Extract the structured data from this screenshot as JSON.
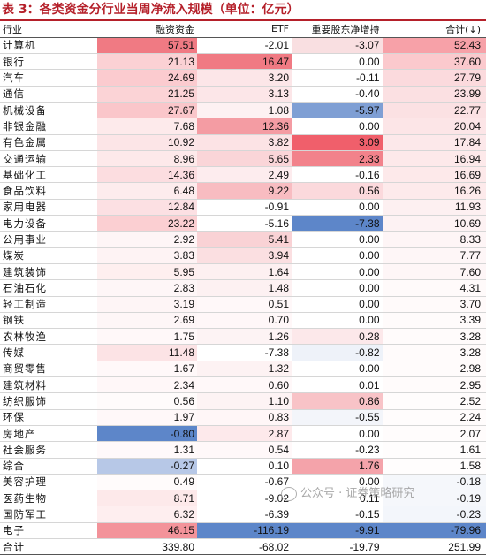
{
  "title": "表 3：各类资金分行业当周净流入规模（单位：亿元）",
  "headers": [
    "行业",
    "融资资金",
    "ETF",
    "重要股东净增持",
    "合计(↓)"
  ],
  "rows": [
    {
      "industry": "计算机",
      "margin": "57.51",
      "etf": "-2.01",
      "holder": "-3.07",
      "total": "52.43",
      "c": [
        "#f07a83",
        "#ffffff",
        "#f9dfe1",
        "#f7a1a8"
      ]
    },
    {
      "industry": "银行",
      "margin": "21.13",
      "etf": "16.47",
      "holder": "0.00",
      "total": "37.60",
      "c": [
        "#fbd1d4",
        "#f07a83",
        "#ffffff",
        "#fbc9cd"
      ]
    },
    {
      "industry": "汽车",
      "margin": "24.69",
      "etf": "3.20",
      "holder": "-0.11",
      "total": "27.79",
      "c": [
        "#fbcbcf",
        "#fce6e8",
        "#ffffff",
        "#fbdadd"
      ]
    },
    {
      "industry": "通信",
      "margin": "21.25",
      "etf": "3.13",
      "holder": "-0.40",
      "total": "23.99",
      "c": [
        "#fbd3d6",
        "#fce6e8",
        "#ffffff",
        "#fbe0e2"
      ]
    },
    {
      "industry": "机械设备",
      "margin": "27.67",
      "etf": "1.08",
      "holder": "-5.97",
      "total": "22.77",
      "c": [
        "#fac6ca",
        "#fdf1f2",
        "#7f9fd4",
        "#fbe1e3"
      ]
    },
    {
      "industry": "非银金融",
      "margin": "7.68",
      "etf": "12.36",
      "holder": "0.00",
      "total": "20.04",
      "c": [
        "#fdeaeb",
        "#f49ca3",
        "#ffffff",
        "#fce5e7"
      ]
    },
    {
      "industry": "有色金属",
      "margin": "10.92",
      "etf": "3.82",
      "holder": "3.09",
      "total": "17.84",
      "c": [
        "#fce5e7",
        "#fce3e5",
        "#f05f6b",
        "#fce8ea"
      ]
    },
    {
      "industry": "交通运输",
      "margin": "8.96",
      "etf": "5.65",
      "holder": "2.33",
      "total": "16.94",
      "c": [
        "#fde9ea",
        "#fad5d8",
        "#f2828b",
        "#fde9ea"
      ]
    },
    {
      "industry": "基础化工",
      "margin": "14.36",
      "etf": "2.49",
      "holder": "-0.16",
      "total": "16.69",
      "c": [
        "#fcdde0",
        "#fdecee",
        "#ffffff",
        "#fde9ea"
      ]
    },
    {
      "industry": "食品饮料",
      "margin": "6.48",
      "etf": "9.22",
      "holder": "0.56",
      "total": "16.26",
      "c": [
        "#fdeced",
        "#f8bcc1",
        "#fbd9dc",
        "#fdeaeb"
      ]
    },
    {
      "industry": "家用电器",
      "margin": "12.84",
      "etf": "-0.91",
      "holder": "0.00",
      "total": "11.93",
      "c": [
        "#fce0e3",
        "#ffffff",
        "#ffffff",
        "#fdf0f1"
      ]
    },
    {
      "industry": "电力设备",
      "margin": "23.22",
      "etf": "-5.16",
      "holder": "-7.38",
      "total": "10.69",
      "c": [
        "#fbcfd2",
        "#ffffff",
        "#5d86c9",
        "#fdf2f3"
      ]
    },
    {
      "industry": "公用事业",
      "margin": "2.92",
      "etf": "5.41",
      "holder": "0.00",
      "total": "8.33",
      "c": [
        "#fef5f6",
        "#f9d2d5",
        "#ffffff",
        "#fef5f6"
      ]
    },
    {
      "industry": "煤炭",
      "margin": "3.83",
      "etf": "3.94",
      "holder": "0.00",
      "total": "7.77",
      "c": [
        "#fef3f4",
        "#fbdfe1",
        "#ffffff",
        "#fef6f7"
      ]
    },
    {
      "industry": "建筑装饰",
      "margin": "5.95",
      "etf": "1.64",
      "holder": "0.00",
      "total": "7.60",
      "c": [
        "#feefef",
        "#fdf0f1",
        "#ffffff",
        "#fef6f7"
      ]
    },
    {
      "industry": "石油石化",
      "margin": "2.83",
      "etf": "1.48",
      "holder": "0.00",
      "total": "4.31",
      "c": [
        "#fef6f7",
        "#fdf1f2",
        "#ffffff",
        "#fffafa"
      ]
    },
    {
      "industry": "轻工制造",
      "margin": "3.19",
      "etf": "0.51",
      "holder": "0.00",
      "total": "3.70",
      "c": [
        "#fef5f6",
        "#fff8f9",
        "#ffffff",
        "#fffafa"
      ]
    },
    {
      "industry": "钢铁",
      "margin": "2.69",
      "etf": "0.70",
      "holder": "0.00",
      "total": "3.39",
      "c": [
        "#fef6f7",
        "#fff7f8",
        "#ffffff",
        "#fffbfb"
      ]
    },
    {
      "industry": "农林牧渔",
      "margin": "1.75",
      "etf": "1.26",
      "holder": "0.28",
      "total": "3.28",
      "c": [
        "#fff8f9",
        "#fdf3f4",
        "#fce8ea",
        "#fffbfb"
      ]
    },
    {
      "industry": "传媒",
      "margin": "11.48",
      "etf": "-7.38",
      "holder": "-0.82",
      "total": "3.28",
      "c": [
        "#fce3e5",
        "#ffffff",
        "#eef2f9",
        "#fffbfb"
      ]
    },
    {
      "industry": "商贸零售",
      "margin": "1.67",
      "etf": "1.32",
      "holder": "0.00",
      "total": "2.98",
      "c": [
        "#fff8f9",
        "#fdf2f3",
        "#ffffff",
        "#fffbfb"
      ]
    },
    {
      "industry": "建筑材料",
      "margin": "2.34",
      "etf": "0.60",
      "holder": "0.01",
      "total": "2.95",
      "c": [
        "#fff7f8",
        "#fff8f9",
        "#ffffff",
        "#fffbfb"
      ]
    },
    {
      "industry": "纺织服饰",
      "margin": "0.56",
      "etf": "1.10",
      "holder": "0.86",
      "total": "2.52",
      "c": [
        "#fffbfb",
        "#fdf3f4",
        "#f8c3c7",
        "#fffcfc"
      ]
    },
    {
      "industry": "环保",
      "margin": "1.97",
      "etf": "0.83",
      "holder": "-0.55",
      "total": "2.24",
      "c": [
        "#fff8f9",
        "#fff6f7",
        "#f3f5fa",
        "#fffcfc"
      ]
    },
    {
      "industry": "房地产",
      "margin": "-0.80",
      "etf": "2.87",
      "holder": "0.00",
      "total": "2.07",
      "c": [
        "#5d86c9",
        "#fde9eb",
        "#ffffff",
        "#fffcfc"
      ]
    },
    {
      "industry": "社会服务",
      "margin": "1.31",
      "etf": "0.54",
      "holder": "-0.23",
      "total": "1.61",
      "c": [
        "#fff9fa",
        "#fff8f9",
        "#ffffff",
        "#fffdfd"
      ]
    },
    {
      "industry": "综合",
      "margin": "-0.27",
      "etf": "0.10",
      "holder": "1.76",
      "total": "1.58",
      "c": [
        "#b7c8e7",
        "#ffffff",
        "#f4a3aa",
        "#fffdfd"
      ]
    },
    {
      "industry": "美容护理",
      "margin": "0.49",
      "etf": "-0.67",
      "holder": "0.00",
      "total": "-0.18",
      "c": [
        "#fffbfb",
        "#ffffff",
        "#ffffff",
        "#f5f7fb"
      ]
    },
    {
      "industry": "医药生物",
      "margin": "8.71",
      "etf": "-9.02",
      "holder": "0.11",
      "total": "-0.19",
      "c": [
        "#fde9ea",
        "#ffffff",
        "#ffffff",
        "#f5f7fb"
      ]
    },
    {
      "industry": "国防军工",
      "margin": "6.32",
      "etf": "-6.39",
      "holder": "-0.15",
      "total": "-0.23",
      "c": [
        "#feeeef",
        "#ffffff",
        "#ffffff",
        "#f3f6fb"
      ]
    },
    {
      "industry": "电子",
      "margin": "46.15",
      "etf": "-116.19",
      "holder": "-9.91",
      "total": "-79.96",
      "c": [
        "#f3939a",
        "#5d86c9",
        "#5d86c9",
        "#5d86c9"
      ]
    }
  ],
  "total": {
    "industry": "合计",
    "margin": "339.80",
    "etf": "-68.02",
    "holder": "-19.79",
    "total": "251.99"
  },
  "watermark": "公众号 · 证券策略研究"
}
